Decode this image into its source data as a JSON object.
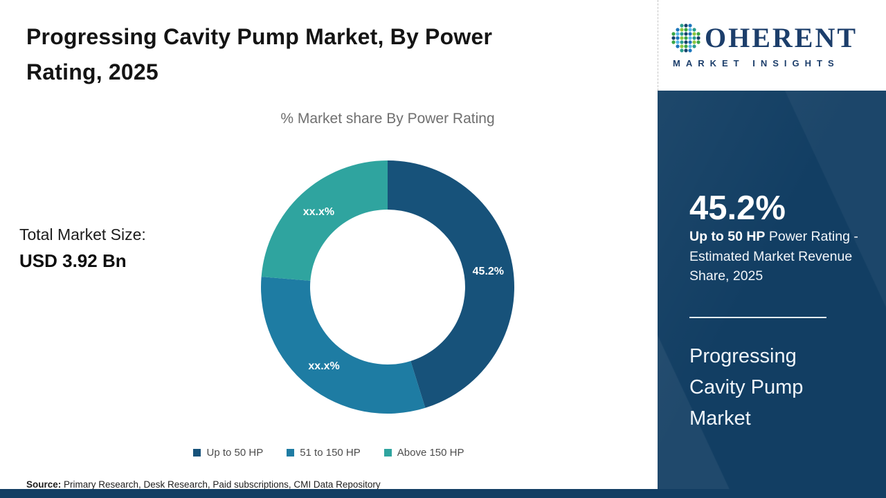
{
  "page": {
    "background": "#ffffff",
    "accent_navy": "#123e63"
  },
  "header": {
    "title": "Progressing Cavity Pump Market, By Power Rating, 2025"
  },
  "stats": {
    "total_label": "Total Market Size:",
    "total_value": "USD 3.92 Bn"
  },
  "chart_data": {
    "type": "pie",
    "donut": true,
    "title": "% Market share By Power Rating",
    "categories": [
      "Up to 50 HP",
      "51 to 150 HP",
      "Above 150 HP"
    ],
    "values": [
      45.2,
      31.1,
      23.7
    ],
    "value_display": [
      "45.2%",
      "xx.x%",
      "xx.x%"
    ],
    "colors": [
      "#17527a",
      "#1e7ca3",
      "#2fa49f"
    ],
    "inner_radius_ratio": 0.61,
    "start_angle_deg": 0,
    "legend_position": "bottom",
    "label_color": "#ffffff"
  },
  "sidebar": {
    "brand": {
      "name": "COHERENT",
      "name_after_icon": "OHERENT",
      "tagline": "MARKET INSIGHTS",
      "color": "#1c3e6b",
      "dot_palette": [
        "#3aa647",
        "#8dc63f",
        "#1b75bc",
        "#16436b",
        "#2a9d8f",
        "#56b7e6"
      ]
    },
    "stat_value": "45.2%",
    "stat_highlight": "Up to 50 HP",
    "stat_text": " Power Rating - Estimated Market Revenue Share, 2025",
    "product_name": "Progressing Cavity Pump Market"
  },
  "footer": {
    "source_label": "Source:",
    "source_text": " Primary Research, Desk Research, Paid subscriptions, CMI Data Repository"
  }
}
